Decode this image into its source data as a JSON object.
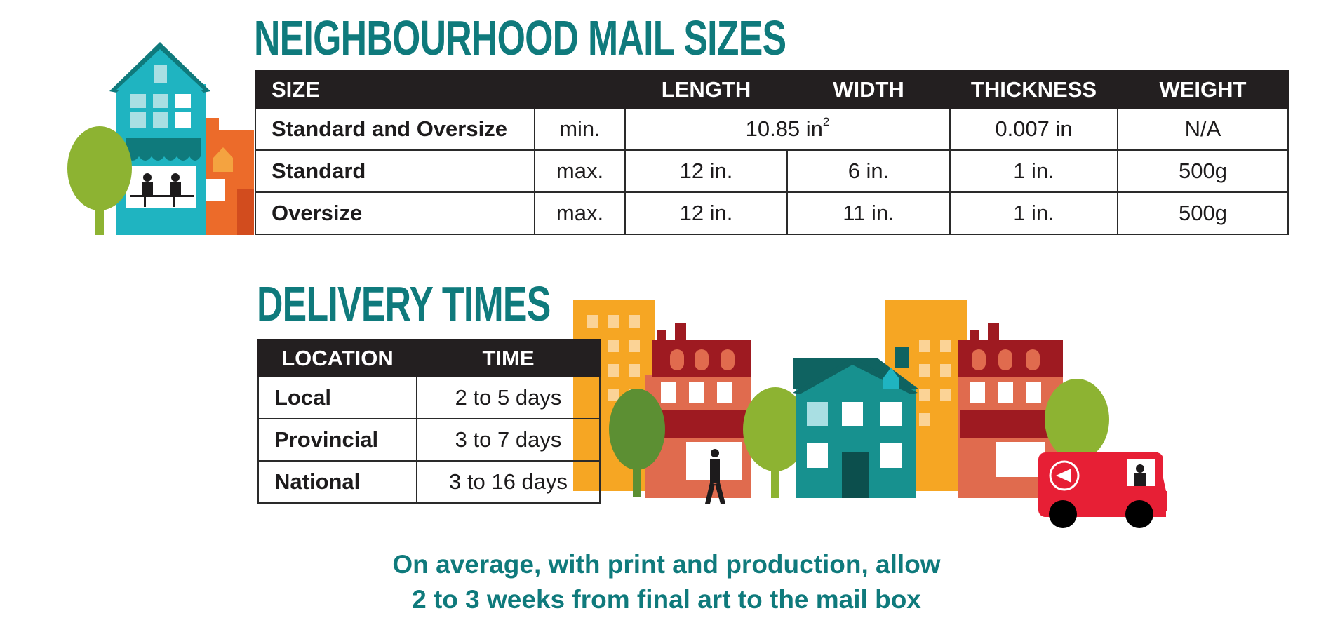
{
  "sizes": {
    "title": "NEIGHBOURHOOD MAIL SIZES",
    "headers": {
      "size": "SIZE",
      "length": "LENGTH",
      "width": "WIDTH",
      "thickness": "THICKNESS",
      "weight": "WEIGHT"
    },
    "rows": [
      {
        "name": "Standard and Oversize",
        "limit": "min.",
        "area": "10.85 in",
        "area_sup": "2",
        "thickness": "0.007 in",
        "weight": "N/A"
      },
      {
        "name": "Standard",
        "limit": "max.",
        "length": "12 in.",
        "width": "6 in.",
        "thickness": "1 in.",
        "weight": "500g"
      },
      {
        "name": "Oversize",
        "limit": "max.",
        "length": "12 in.",
        "width": "11 in.",
        "thickness": "1 in.",
        "weight": "500g"
      }
    ]
  },
  "delivery": {
    "title": "DELIVERY TIMES",
    "headers": {
      "location": "LOCATION",
      "time": "TIME"
    },
    "rows": [
      {
        "location": "Local",
        "time": "2 to 5 days"
      },
      {
        "location": "Provincial",
        "time": "3 to 7 days"
      },
      {
        "location": "National",
        "time": "3 to 16 days"
      }
    ]
  },
  "note": {
    "line1": "On average, with print and production, allow",
    "line2": "2 to 3 weeks from final art to the mail box"
  },
  "colors": {
    "teal_heading": "#0f7a7c",
    "table_header": "#231f20",
    "accent_green": "#8db332",
    "accent_orange": "#f6a623",
    "accent_red": "#e8443a",
    "truck_red": "#e71f35"
  }
}
